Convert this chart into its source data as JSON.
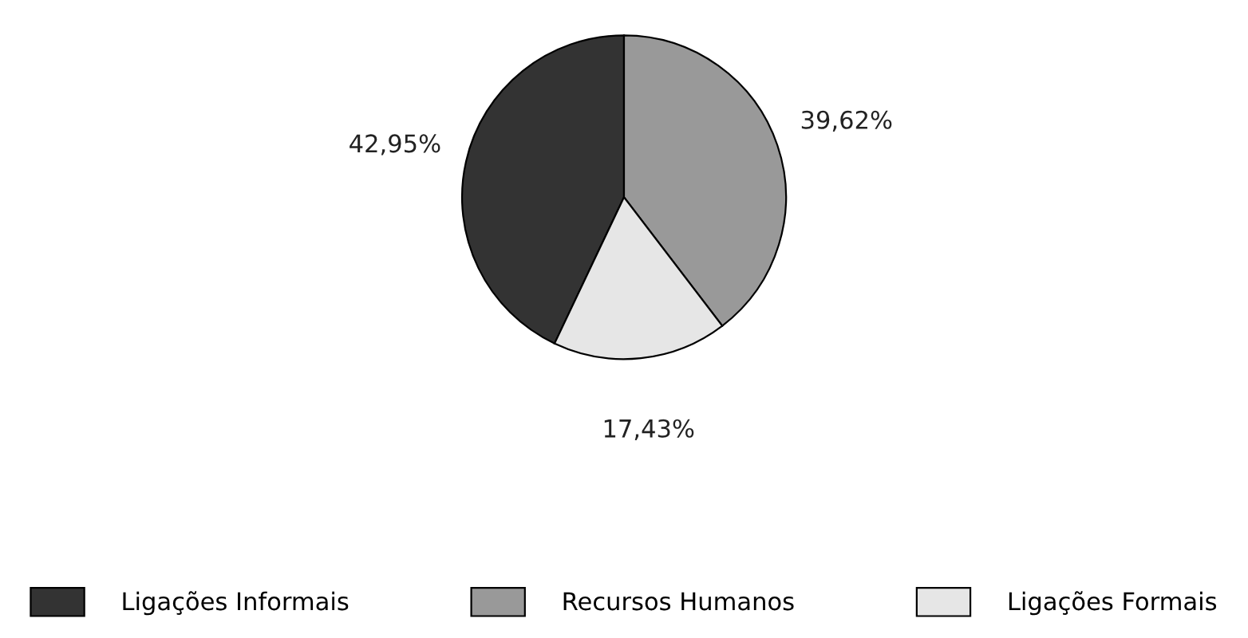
{
  "chart_data": {
    "type": "pie",
    "categories": [
      "Ligações Informais",
      "Recursos Humanos",
      "Ligações Formais"
    ],
    "values": [
      42.95,
      39.62,
      17.43
    ],
    "colors": [
      "#333333",
      "#999999",
      "#e6e6e6"
    ],
    "value_labels": [
      "42,95%",
      "39,62%",
      "17,43%"
    ],
    "legend": "bottom"
  }
}
